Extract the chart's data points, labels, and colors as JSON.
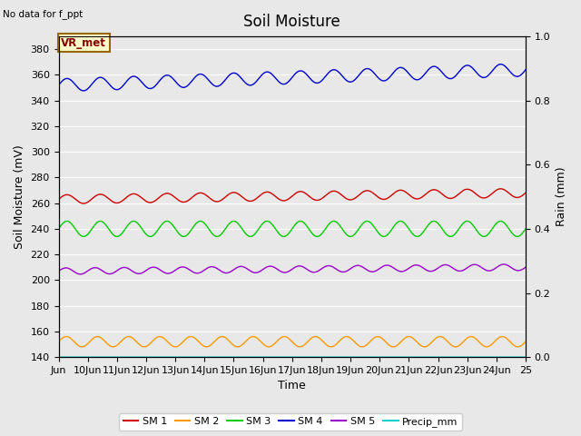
{
  "title": "Soil Moisture",
  "no_data_text": "No data for f_ppt",
  "xlabel": "Time",
  "ylabel_left": "Soil Moisture (mV)",
  "ylabel_right": "Rain (mm)",
  "x_start": 9,
  "x_end": 25,
  "ylim_left": [
    140,
    390
  ],
  "ylim_right": [
    0.0,
    1.0
  ],
  "yticks_left": [
    140,
    160,
    180,
    200,
    220,
    240,
    260,
    280,
    300,
    320,
    340,
    360,
    380
  ],
  "yticks_right": [
    0.0,
    0.2,
    0.4,
    0.6,
    0.8,
    1.0
  ],
  "xtick_labels": [
    "Jun",
    "10Jun",
    "11Jun",
    "12Jun",
    "13Jun",
    "14Jun",
    "15Jun",
    "16Jun",
    "17Jun",
    "18Jun",
    "19Jun",
    "20Jun",
    "21Jun",
    "22Jun",
    "23Jun",
    "24Jun",
    "25"
  ],
  "xtick_positions": [
    9,
    10,
    11,
    12,
    13,
    14,
    15,
    16,
    17,
    18,
    19,
    20,
    21,
    22,
    23,
    24,
    25
  ],
  "series": {
    "SM1": {
      "color": "#cc0000",
      "base": 263,
      "amplitude": 3.5,
      "trend": 5,
      "num_cycles": 14
    },
    "SM2": {
      "color": "#ff9900",
      "base": 152,
      "amplitude": 4,
      "trend": 0,
      "num_cycles": 15
    },
    "SM3": {
      "color": "#00cc00",
      "base": 240,
      "amplitude": 6,
      "trend": 0,
      "num_cycles": 14
    },
    "SM4": {
      "color": "#0000cc",
      "base": 352,
      "amplitude": 5,
      "trend": 12,
      "num_cycles": 14
    },
    "SM5": {
      "color": "#9900cc",
      "base": 207,
      "amplitude": 2.5,
      "trend": 3,
      "num_cycles": 16
    },
    "Precip": {
      "color": "#00cccc",
      "base": 140,
      "amplitude": 0,
      "trend": 0,
      "num_cycles": 0
    }
  },
  "legend_labels": [
    "SM 1",
    "SM 2",
    "SM 3",
    "SM 4",
    "SM 5",
    "Precip_mm"
  ],
  "legend_colors": [
    "#cc0000",
    "#ff9900",
    "#00cc00",
    "#0000cc",
    "#9900cc",
    "#00cccc"
  ],
  "vr_met_box": {
    "text": "VR_met",
    "facecolor": "#ffffcc",
    "edgecolor": "#996600"
  },
  "background_color": "#e8e8e8",
  "grid_color": "#ffffff",
  "title_fontsize": 12,
  "label_fontsize": 9,
  "tick_fontsize": 8
}
